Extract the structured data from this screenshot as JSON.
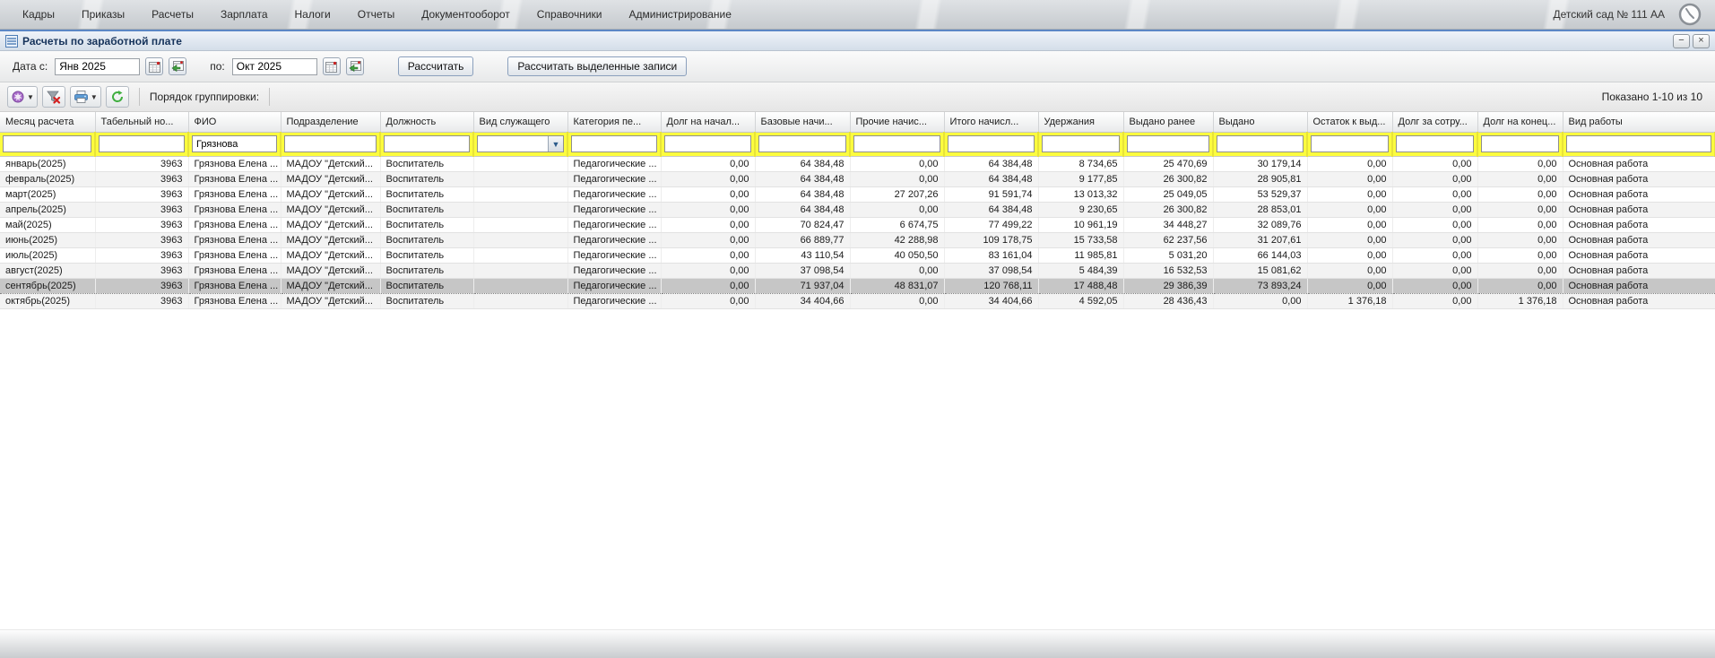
{
  "menu": {
    "items": [
      "Кадры",
      "Приказы",
      "Расчеты",
      "Зарплата",
      "Налоги",
      "Отчеты",
      "Документооборот",
      "Справочники",
      "Администрирование"
    ],
    "org_name": "Детский сад № 111 АА"
  },
  "panel": {
    "title": "Расчеты по заработной плате",
    "minimize_label": "−",
    "close_label": "×"
  },
  "toolbar": {
    "date_from_label": "Дата с:",
    "date_from_value": "Янв 2025",
    "date_to_label": "по:",
    "date_to_value": "Окт 2025",
    "calc_button": "Рассчитать",
    "calc_selected_button": "Рассчитать выделенные записи"
  },
  "grid_toolbar": {
    "grouping_label": "Порядок группировки:",
    "shown_text": "Показано 1-10 из 10"
  },
  "table": {
    "columns": [
      {
        "label": "Месяц расчета"
      },
      {
        "label": "Табельный но..."
      },
      {
        "label": "ФИО"
      },
      {
        "label": "Подразделение"
      },
      {
        "label": "Должность"
      },
      {
        "label": "Вид служащего"
      },
      {
        "label": "Категория пе..."
      },
      {
        "label": "Долг на начал..."
      },
      {
        "label": "Базовые начи..."
      },
      {
        "label": "Прочие начис..."
      },
      {
        "label": "Итого начисл..."
      },
      {
        "label": "Удержания"
      },
      {
        "label": "Выдано ранее"
      },
      {
        "label": "Выдано"
      },
      {
        "label": "Остаток к выд..."
      },
      {
        "label": "Долг за сотру..."
      },
      {
        "label": "Долг на конец..."
      },
      {
        "label": "Вид работы"
      }
    ],
    "filters": [
      "",
      "",
      "Грязнова",
      "",
      "",
      "",
      "",
      "",
      "",
      "",
      "",
      "",
      "",
      "",
      "",
      "",
      "",
      ""
    ],
    "rows": [
      [
        "январь(2025)",
        "3963",
        "Грязнова Елена ...",
        "МАДОУ \"Детский...",
        "Воспитатель",
        "",
        "Педагогические ...",
        "0,00",
        "64 384,48",
        "0,00",
        "64 384,48",
        "8 734,65",
        "25 470,69",
        "30 179,14",
        "0,00",
        "0,00",
        "0,00",
        "Основная работа"
      ],
      [
        "февраль(2025)",
        "3963",
        "Грязнова Елена ...",
        "МАДОУ \"Детский...",
        "Воспитатель",
        "",
        "Педагогические ...",
        "0,00",
        "64 384,48",
        "0,00",
        "64 384,48",
        "9 177,85",
        "26 300,82",
        "28 905,81",
        "0,00",
        "0,00",
        "0,00",
        "Основная работа"
      ],
      [
        "март(2025)",
        "3963",
        "Грязнова Елена ...",
        "МАДОУ \"Детский...",
        "Воспитатель",
        "",
        "Педагогические ...",
        "0,00",
        "64 384,48",
        "27 207,26",
        "91 591,74",
        "13 013,32",
        "25 049,05",
        "53 529,37",
        "0,00",
        "0,00",
        "0,00",
        "Основная работа"
      ],
      [
        "апрель(2025)",
        "3963",
        "Грязнова Елена ...",
        "МАДОУ \"Детский...",
        "Воспитатель",
        "",
        "Педагогические ...",
        "0,00",
        "64 384,48",
        "0,00",
        "64 384,48",
        "9 230,65",
        "26 300,82",
        "28 853,01",
        "0,00",
        "0,00",
        "0,00",
        "Основная работа"
      ],
      [
        "май(2025)",
        "3963",
        "Грязнова Елена ...",
        "МАДОУ \"Детский...",
        "Воспитатель",
        "",
        "Педагогические ...",
        "0,00",
        "70 824,47",
        "6 674,75",
        "77 499,22",
        "10 961,19",
        "34 448,27",
        "32 089,76",
        "0,00",
        "0,00",
        "0,00",
        "Основная работа"
      ],
      [
        "июнь(2025)",
        "3963",
        "Грязнова Елена ...",
        "МАДОУ \"Детский...",
        "Воспитатель",
        "",
        "Педагогические ...",
        "0,00",
        "66 889,77",
        "42 288,98",
        "109 178,75",
        "15 733,58",
        "62 237,56",
        "31 207,61",
        "0,00",
        "0,00",
        "0,00",
        "Основная работа"
      ],
      [
        "июль(2025)",
        "3963",
        "Грязнова Елена ...",
        "МАДОУ \"Детский...",
        "Воспитатель",
        "",
        "Педагогические ...",
        "0,00",
        "43 110,54",
        "40 050,50",
        "83 161,04",
        "11 985,81",
        "5 031,20",
        "66 144,03",
        "0,00",
        "0,00",
        "0,00",
        "Основная работа"
      ],
      [
        "август(2025)",
        "3963",
        "Грязнова Елена ...",
        "МАДОУ \"Детский...",
        "Воспитатель",
        "",
        "Педагогические ...",
        "0,00",
        "37 098,54",
        "0,00",
        "37 098,54",
        "5 484,39",
        "16 532,53",
        "15 081,62",
        "0,00",
        "0,00",
        "0,00",
        "Основная работа"
      ],
      [
        "сентябрь(2025)",
        "3963",
        "Грязнова Елена ...",
        "МАДОУ \"Детский...",
        "Воспитатель",
        "",
        "Педагогические ...",
        "0,00",
        "71 937,04",
        "48 831,07",
        "120 768,11",
        "17 488,48",
        "29 386,39",
        "73 893,24",
        "0,00",
        "0,00",
        "0,00",
        "Основная работа"
      ],
      [
        "октябрь(2025)",
        "3963",
        "Грязнова Елена ...",
        "МАДОУ \"Детский...",
        "Воспитатель",
        "",
        "Педагогические ...",
        "0,00",
        "34 404,66",
        "0,00",
        "34 404,66",
        "4 592,05",
        "28 436,43",
        "0,00",
        "1 376,18",
        "0,00",
        "1 376,18",
        "Основная работа"
      ]
    ],
    "selected_row_index": 8,
    "red_cells": [
      [
        9,
        16
      ]
    ]
  },
  "colors": {
    "title_accent": "#5b87c5",
    "filter_yellow": "#fcfc3e",
    "selected_row": "#c6c6c6",
    "negative_value": "#d40000"
  }
}
